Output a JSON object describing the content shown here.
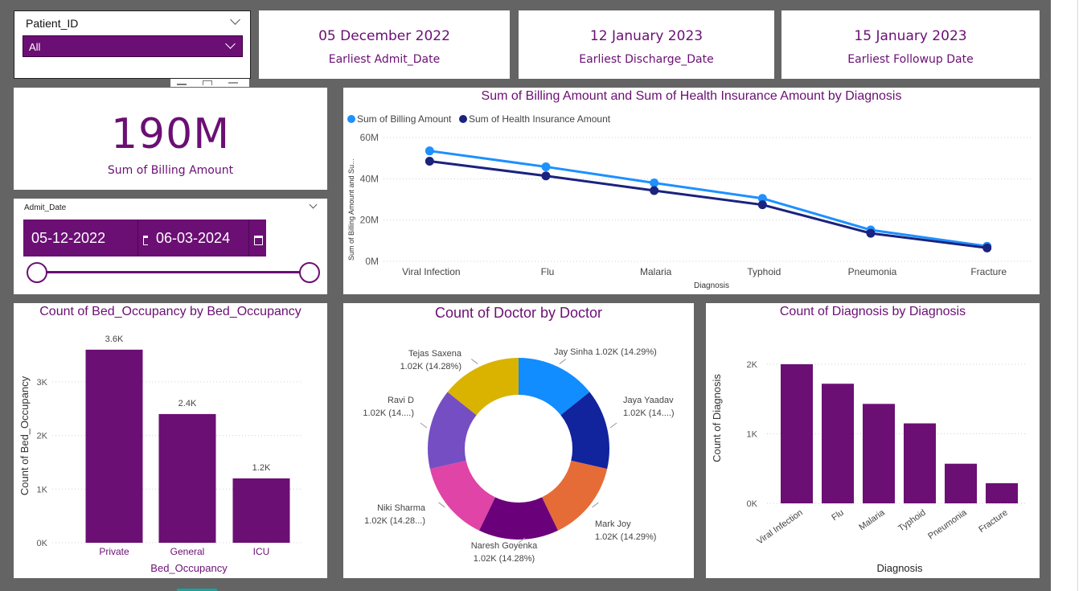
{
  "slicer_patient": {
    "title": "Patient_ID",
    "selected": "All"
  },
  "cards": [
    {
      "value": "05 December 2022",
      "label": "Earliest Admit_Date"
    },
    {
      "value": "12 January 2023",
      "label": "Earliest Discharge_Date"
    },
    {
      "value": "15 January 2023",
      "label": "Earliest Followup Date"
    }
  ],
  "kpi": {
    "value": "190M",
    "label": "Sum of Billing Amount"
  },
  "slicer_date": {
    "title": "Admit_Date",
    "start": "05-12-2022",
    "end": "06-03-2024"
  },
  "colors": {
    "accent": "#6b0f74",
    "billing": "#1e90ff",
    "insurance": "#1a237e"
  },
  "line_chart": {
    "title": "Sum of Billing Amount and Sum of Health Insurance Amount by Diagnosis",
    "ylabel": "Sum of Billing Amount and Su...",
    "xlabel": "Diagnosis",
    "legend": [
      "Sum of Billing Amount",
      "Sum of Health Insurance Amount"
    ],
    "yticks": [
      "0M",
      "20M",
      "40M",
      "60M"
    ]
  },
  "bed_chart": {
    "title": "Count of Bed_Occupancy by Bed_Occupancy",
    "ylabel": "Count of Bed_Occupancy",
    "xlabel": "Bed_Occupancy",
    "yticks": [
      "0K",
      "1K",
      "2K",
      "3K"
    ]
  },
  "donut_chart": {
    "title": "Count of Doctor by Doctor"
  },
  "diag_chart": {
    "title": "Count of Diagnosis by Diagnosis",
    "ylabel": "Count of Diagnosis",
    "xlabel": "Diagnosis",
    "yticks": [
      "0K",
      "1K",
      "2K"
    ]
  },
  "chart_data": [
    {
      "type": "line",
      "title": "Sum of Billing Amount and Sum of Health Insurance Amount by Diagnosis",
      "categories": [
        "Viral Infection",
        "Flu",
        "Malaria",
        "Typhoid",
        "Pneumonia",
        "Fracture"
      ],
      "series": [
        {
          "name": "Sum of Billing Amount",
          "values": [
            53.5,
            45.8,
            38.0,
            30.5,
            15.2,
            7.3
          ]
        },
        {
          "name": "Sum of Health Insurance Amount",
          "values": [
            48.5,
            41.4,
            34.3,
            27.4,
            13.6,
            6.5
          ]
        }
      ],
      "ylim": [
        0,
        60
      ],
      "xlabel": "Diagnosis",
      "ylabel": "Sum of Billing Amount and Su..."
    },
    {
      "type": "bar",
      "title": "Count of Bed_Occupancy by Bed_Occupancy",
      "categories": [
        "Private",
        "General",
        "ICU"
      ],
      "values": [
        3600,
        2400,
        1200
      ],
      "labels": [
        "3.6K",
        "2.4K",
        "1.2K"
      ],
      "ylim": [
        0,
        3600
      ],
      "xlabel": "Bed_Occupancy",
      "ylabel": "Count of Bed_Occupancy"
    },
    {
      "type": "pie",
      "title": "Count of Doctor by Doctor",
      "slices": [
        {
          "name": "Jay Sinha",
          "value": 1020,
          "label": "Jay Sinha 1.02K (14.29%)",
          "color": "#118dff"
        },
        {
          "name": "Jaya Yaadav",
          "value": 1020,
          "label": "Jaya Yaadav 1.02K (14....)",
          "color": "#12239e"
        },
        {
          "name": "Mark Joy",
          "value": 1020,
          "label": "Mark Joy 1.02K (14.29%)",
          "color": "#e66c37"
        },
        {
          "name": "Naresh Goyenka",
          "value": 1020,
          "label": "Naresh Goyenka 1.02K (14.28%)",
          "color": "#6b007b"
        },
        {
          "name": "Niki Sharma",
          "value": 1020,
          "label": "Niki Sharma 1.02K (14.28...)",
          "color": "#e044a7"
        },
        {
          "name": "Ravi D",
          "value": 1020,
          "label": "Ravi D 1.02K (14....)",
          "color": "#744ec2"
        },
        {
          "name": "Tejas Saxena",
          "value": 1020,
          "label": "Tejas Saxena 1.02K (14.28%)",
          "color": "#d9b300"
        }
      ]
    },
    {
      "type": "bar",
      "title": "Count of Diagnosis by Diagnosis",
      "categories": [
        "Viral Infection",
        "Flu",
        "Malaria",
        "Typhoid",
        "Pneumonia",
        "Fracture"
      ],
      "values": [
        2000,
        1720,
        1430,
        1150,
        570,
        290
      ],
      "ylim": [
        0,
        2400
      ],
      "xlabel": "Diagnosis",
      "ylabel": "Count of Diagnosis"
    }
  ]
}
